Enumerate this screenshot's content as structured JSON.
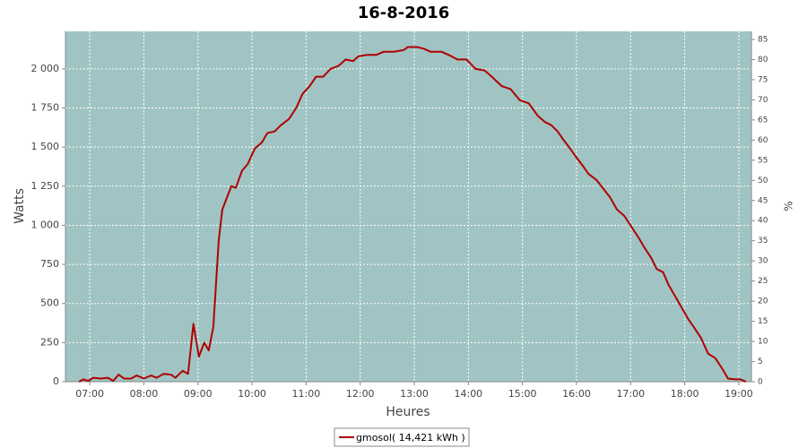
{
  "chart_data": {
    "type": "line",
    "title": "16-8-2016",
    "xlabel": "Heures",
    "ylabel": "Watts",
    "y2label": "%",
    "x": [
      "06:48",
      "06:53",
      "06:58",
      "07:04",
      "07:12",
      "07:20",
      "07:26",
      "07:32",
      "07:38",
      "07:46",
      "07:52",
      "08:00",
      "08:08",
      "08:14",
      "08:22",
      "08:30",
      "08:35",
      "08:43",
      "08:49",
      "08:55",
      "09:01",
      "09:07",
      "09:12",
      "09:17",
      "09:23",
      "09:27",
      "09:37",
      "09:42",
      "09:49",
      "09:55",
      "10:03",
      "10:11",
      "10:17",
      "10:25",
      "10:32",
      "10:41",
      "10:49",
      "10:56",
      "11:04",
      "11:11",
      "11:19",
      "11:27",
      "11:36",
      "11:44",
      "11:52",
      "11:58",
      "12:08",
      "12:18",
      "12:26",
      "12:38",
      "12:48",
      "12:53",
      "13:03",
      "13:10",
      "13:18",
      "13:30",
      "13:38",
      "13:48",
      "13:58",
      "14:08",
      "14:18",
      "14:26",
      "14:37",
      "14:47",
      "14:57",
      "15:07",
      "15:17",
      "15:25",
      "15:32",
      "15:39",
      "15:45",
      "15:53",
      "15:59",
      "16:07",
      "16:13",
      "16:22",
      "16:29",
      "16:37",
      "16:45",
      "16:53",
      "17:01",
      "17:09",
      "17:15",
      "17:23",
      "17:29",
      "17:36",
      "17:42",
      "17:50",
      "17:56",
      "18:04",
      "18:10",
      "18:18",
      "18:26",
      "18:34",
      "18:42",
      "18:48",
      "18:56",
      "19:02",
      "19:08"
    ],
    "series": [
      {
        "name": "gmosol( 14,421 kWh )",
        "color": "#b00000",
        "values": [
          0,
          15,
          5,
          25,
          20,
          25,
          5,
          45,
          20,
          20,
          40,
          20,
          40,
          25,
          50,
          45,
          25,
          70,
          50,
          370,
          160,
          250,
          200,
          350,
          900,
          1100,
          1250,
          1240,
          1350,
          1390,
          1490,
          1530,
          1590,
          1600,
          1640,
          1680,
          1750,
          1840,
          1890,
          1950,
          1950,
          2000,
          2020,
          2060,
          2050,
          2080,
          2090,
          2090,
          2110,
          2110,
          2120,
          2140,
          2140,
          2130,
          2110,
          2110,
          2090,
          2060,
          2060,
          2000,
          1990,
          1950,
          1890,
          1870,
          1800,
          1780,
          1700,
          1660,
          1640,
          1600,
          1550,
          1490,
          1440,
          1380,
          1330,
          1290,
          1240,
          1180,
          1100,
          1060,
          990,
          920,
          860,
          790,
          720,
          700,
          620,
          540,
          480,
          400,
          350,
          280,
          180,
          150,
          80,
          20,
          15,
          15,
          0
        ]
      }
    ],
    "xlim": [
      "06:33",
      "19:14"
    ],
    "xticks": [
      "07:00",
      "08:00",
      "09:00",
      "10:00",
      "11:00",
      "12:00",
      "13:00",
      "14:00",
      "15:00",
      "16:00",
      "17:00",
      "18:00",
      "19:00"
    ],
    "ylim": [
      0,
      2240
    ],
    "yticks": [
      0,
      250,
      500,
      750,
      {
        "value": 1000,
        "label": "1 000"
      },
      {
        "value": 1250,
        "label": "1 250"
      },
      {
        "value": 1500,
        "label": "1 500"
      },
      {
        "value": 1750,
        "label": "1 750"
      },
      {
        "value": 2000,
        "label": "2 000"
      }
    ],
    "y2lim": [
      0,
      87
    ],
    "y2ticks": [
      0,
      5,
      10,
      15,
      20,
      25,
      30,
      35,
      40,
      45,
      50,
      55,
      60,
      65,
      70,
      75,
      80,
      85
    ],
    "grid": true,
    "legend": "bottom",
    "background": "#a0c4c3"
  }
}
